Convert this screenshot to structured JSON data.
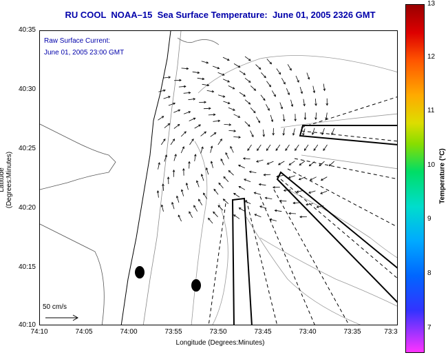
{
  "title": "RU COOL  NOAA–15  Sea Surface Temperature:  June 01, 2005 2326 GMT",
  "annotation_line1": "Raw Surface Current:",
  "annotation_line2": "June 01, 2005 23:00 GMT",
  "scale_label": "50 cm/s",
  "xlabel": "Longitude (Degrees:Minutes)",
  "ylabel": "Latitude (Degrees:Minutes)",
  "colorbar_label": "Temperature (°C)",
  "xticks": [
    "74:10",
    "74:05",
    "74:00",
    "73:55",
    "73:50",
    "73:45",
    "73:40",
    "73:35",
    "73:3"
  ],
  "yticks": [
    "40:35",
    "40:30",
    "40:25",
    "40:20",
    "40:15",
    "40:10"
  ],
  "colorbar_ticks": [
    "13",
    "12",
    "11",
    "10",
    "9",
    "8",
    "7"
  ],
  "colors": {
    "title": "#0000aa",
    "contour": "#888888",
    "coast": "#000000"
  }
}
